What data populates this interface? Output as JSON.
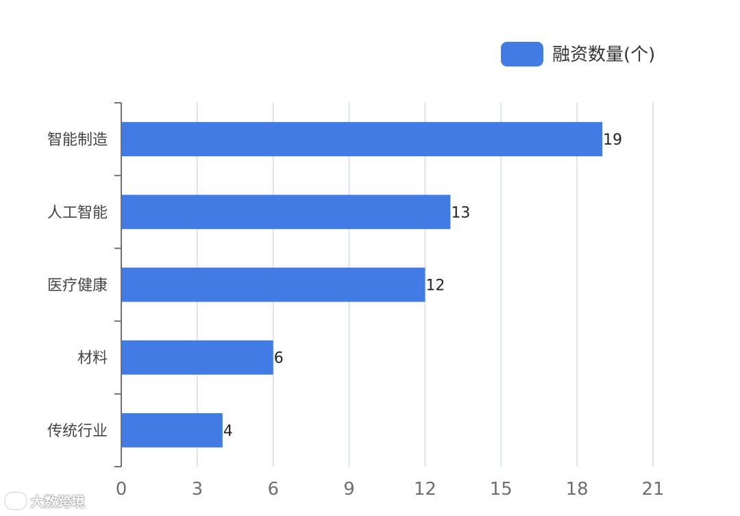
{
  "chart_data": {
    "type": "bar",
    "orientation": "horizontal",
    "categories": [
      "智能制造",
      "人工智能",
      "医疗健康",
      "材料",
      "传统行业"
    ],
    "series": [
      {
        "name": "融资数量(个)",
        "values": [
          19,
          13,
          12,
          6,
          4
        ]
      }
    ],
    "x_ticks": [
      "0",
      "3",
      "6",
      "9",
      "12",
      "15",
      "18",
      "21"
    ],
    "xlim": [
      0,
      21
    ],
    "grid": true,
    "legend_position": "top-right",
    "bar_color": "#427be3"
  },
  "watermark": {
    "text": "大数跨境",
    "icon": "watermark-logo-icon"
  }
}
